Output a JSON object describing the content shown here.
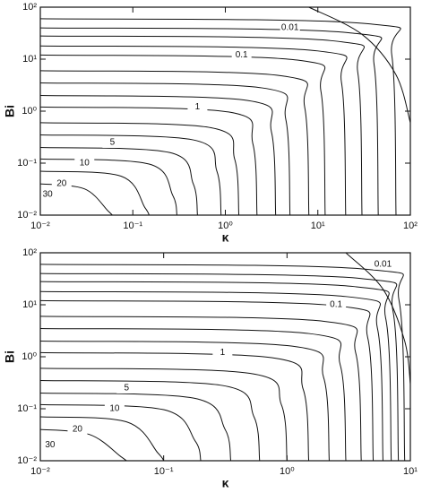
{
  "chart_data": [
    {
      "type": "contour",
      "xlabel": "κ",
      "ylabel": "Bi",
      "xscale": "log",
      "yscale": "log",
      "color": "#111111",
      "xlim": [
        0.01,
        100
      ],
      "ylim": [
        0.01,
        100
      ],
      "xticks": [
        {
          "value": 0.01,
          "label": "10⁻²"
        },
        {
          "value": 0.1,
          "label": "10⁻¹"
        },
        {
          "value": 1,
          "label": "10⁰"
        },
        {
          "value": 10,
          "label": "10¹"
        },
        {
          "value": 100,
          "label": "10²"
        }
      ],
      "yticks": [
        {
          "value": 0.01,
          "label": "10⁻²"
        },
        {
          "value": 0.1,
          "label": "10⁻¹"
        },
        {
          "value": 1,
          "label": "10⁰"
        },
        {
          "value": 10,
          "label": "10¹"
        },
        {
          "value": 100,
          "label": "10²"
        }
      ],
      "annotations": [
        {
          "text": "0.01",
          "x": 5,
          "y": 40
        },
        {
          "text": "0.1",
          "x": 1.5,
          "y": 12
        },
        {
          "text": "1",
          "x": 0.5,
          "y": 1.2
        },
        {
          "text": "5",
          "x": 0.06,
          "y": 0.25
        },
        {
          "text": "10",
          "x": 0.03,
          "y": 0.1
        },
        {
          "text": "20",
          "x": 0.017,
          "y": 0.04
        },
        {
          "text": "30",
          "x": 0.012,
          "y": 0.025
        }
      ],
      "series": [
        {
          "x": [
            8,
            30,
            70,
            100
          ],
          "values": [
            100,
            30,
            5,
            0.6
          ]
        },
        {
          "x": [
            0.01,
            35,
            63,
            70
          ],
          "values": [
            60,
            48,
            12,
            0.01
          ]
        },
        {
          "x": [
            0.01,
            22.5,
            40.5,
            45
          ],
          "values": [
            40,
            32,
            8,
            0.01
          ]
        },
        {
          "x": [
            0.01,
            15,
            27,
            30
          ],
          "values": [
            28,
            22.4,
            5.6,
            0.01
          ]
        },
        {
          "x": [
            0.01,
            10,
            18,
            20
          ],
          "values": [
            18,
            14.4,
            3.6,
            0.01
          ]
        },
        {
          "x": [
            0.01,
            6,
            10.8,
            12
          ],
          "values": [
            12,
            9.6,
            2.4,
            0.01
          ]
        },
        {
          "x": [
            0.01,
            4,
            7.2,
            8
          ],
          "values": [
            6,
            4.8,
            1.2,
            0.01
          ]
        },
        {
          "x": [
            0.01,
            2.5,
            4.5,
            5
          ],
          "values": [
            3.5,
            2.8,
            0.7,
            0.01
          ]
        },
        {
          "x": [
            0.01,
            1.75,
            3.15,
            3.5
          ],
          "values": [
            2,
            1.6,
            0.4,
            0.01
          ]
        },
        {
          "x": [
            0.01,
            1.1,
            1.98,
            2.2
          ],
          "values": [
            1.2,
            0.96,
            0.24,
            0.01
          ]
        },
        {
          "x": [
            0.01,
            0.7,
            1.26,
            1.4
          ],
          "values": [
            0.6,
            0.48,
            0.12,
            0.01
          ]
        },
        {
          "x": [
            0.01,
            0.45,
            0.81,
            0.9
          ],
          "values": [
            0.35,
            0.28,
            0.07,
            0.01
          ]
        },
        {
          "x": [
            0.01,
            0.25,
            0.45,
            0.5
          ],
          "values": [
            0.2,
            0.16,
            0.04,
            0.01
          ]
        },
        {
          "x": [
            0.01,
            0.15,
            0.27,
            0.3
          ],
          "values": [
            0.12,
            0.096,
            0.024,
            0.01
          ]
        },
        {
          "x": [
            0.01,
            0.075,
            0.135,
            0.15
          ],
          "values": [
            0.07,
            0.056,
            0.014,
            0.01
          ]
        },
        {
          "x": [
            0.01,
            0.03,
            0.054,
            0.06
          ],
          "values": [
            0.04,
            0.032,
            0.012,
            0.01
          ]
        }
      ]
    },
    {
      "type": "contour",
      "xlabel": "κ",
      "ylabel": "Bi",
      "xscale": "log",
      "yscale": "log",
      "color": "#111111",
      "xlim": [
        0.01,
        10
      ],
      "ylim": [
        0.01,
        100
      ],
      "xticks": [
        {
          "value": 0.01,
          "label": "10⁻²"
        },
        {
          "value": 0.1,
          "label": "10⁻¹"
        },
        {
          "value": 1,
          "label": "10⁰"
        },
        {
          "value": 10,
          "label": "10¹"
        }
      ],
      "yticks": [
        {
          "value": 0.01,
          "label": "10⁻²"
        },
        {
          "value": 0.1,
          "label": "10⁻¹"
        },
        {
          "value": 1,
          "label": "10⁰"
        },
        {
          "value": 10,
          "label": "10¹"
        },
        {
          "value": 100,
          "label": "10²"
        }
      ],
      "annotations": [
        {
          "text": "0.01",
          "x": 6,
          "y": 60
        },
        {
          "text": "0.1",
          "x": 2.5,
          "y": 10
        },
        {
          "text": "1",
          "x": 0.3,
          "y": 1.2
        },
        {
          "text": "5",
          "x": 0.05,
          "y": 0.25
        },
        {
          "text": "10",
          "x": 0.04,
          "y": 0.1
        },
        {
          "text": "20",
          "x": 0.02,
          "y": 0.04
        },
        {
          "text": "30",
          "x": 0.012,
          "y": 0.02
        }
      ],
      "series": [
        {
          "x": [
            3,
            6,
            9,
            10
          ],
          "values": [
            100,
            20,
            2,
            0.3
          ]
        },
        {
          "x": [
            0.01,
            4.5,
            8.1,
            9
          ],
          "values": [
            60,
            48,
            12,
            0.01
          ]
        },
        {
          "x": [
            0.01,
            4,
            7.2,
            8
          ],
          "values": [
            40,
            32,
            8,
            0.01
          ]
        },
        {
          "x": [
            0.01,
            3.5,
            6.3,
            7
          ],
          "values": [
            28,
            22.4,
            5.6,
            0.01
          ]
        },
        {
          "x": [
            0.01,
            3,
            5.4,
            6
          ],
          "values": [
            18,
            14.4,
            3.6,
            0.01
          ]
        },
        {
          "x": [
            0.01,
            2.5,
            4.5,
            5
          ],
          "values": [
            12,
            9.6,
            2.4,
            0.01
          ]
        },
        {
          "x": [
            0.01,
            2,
            3.6,
            4
          ],
          "values": [
            6,
            4.8,
            1.2,
            0.01
          ]
        },
        {
          "x": [
            0.01,
            1.5,
            2.7,
            3
          ],
          "values": [
            3.5,
            2.8,
            0.7,
            0.01
          ]
        },
        {
          "x": [
            0.01,
            1.1,
            1.98,
            2.2
          ],
          "values": [
            2,
            1.6,
            0.4,
            0.01
          ]
        },
        {
          "x": [
            0.01,
            0.75,
            1.35,
            1.5
          ],
          "values": [
            1.2,
            0.96,
            0.24,
            0.01
          ]
        },
        {
          "x": [
            0.01,
            0.5,
            0.9,
            1
          ],
          "values": [
            0.6,
            0.48,
            0.12,
            0.01
          ]
        },
        {
          "x": [
            0.01,
            0.3,
            0.54,
            0.6
          ],
          "values": [
            0.35,
            0.28,
            0.07,
            0.01
          ]
        },
        {
          "x": [
            0.01,
            0.175,
            0.315,
            0.35
          ],
          "values": [
            0.2,
            0.16,
            0.04,
            0.01
          ]
        },
        {
          "x": [
            0.01,
            0.1,
            0.18,
            0.2
          ],
          "values": [
            0.12,
            0.096,
            0.024,
            0.01
          ]
        },
        {
          "x": [
            0.01,
            0.05,
            0.09,
            0.1
          ],
          "values": [
            0.07,
            0.056,
            0.014,
            0.01
          ]
        },
        {
          "x": [
            0.01,
            0.025,
            0.045,
            0.05
          ],
          "values": [
            0.04,
            0.032,
            0.012,
            0.01
          ]
        }
      ]
    }
  ]
}
